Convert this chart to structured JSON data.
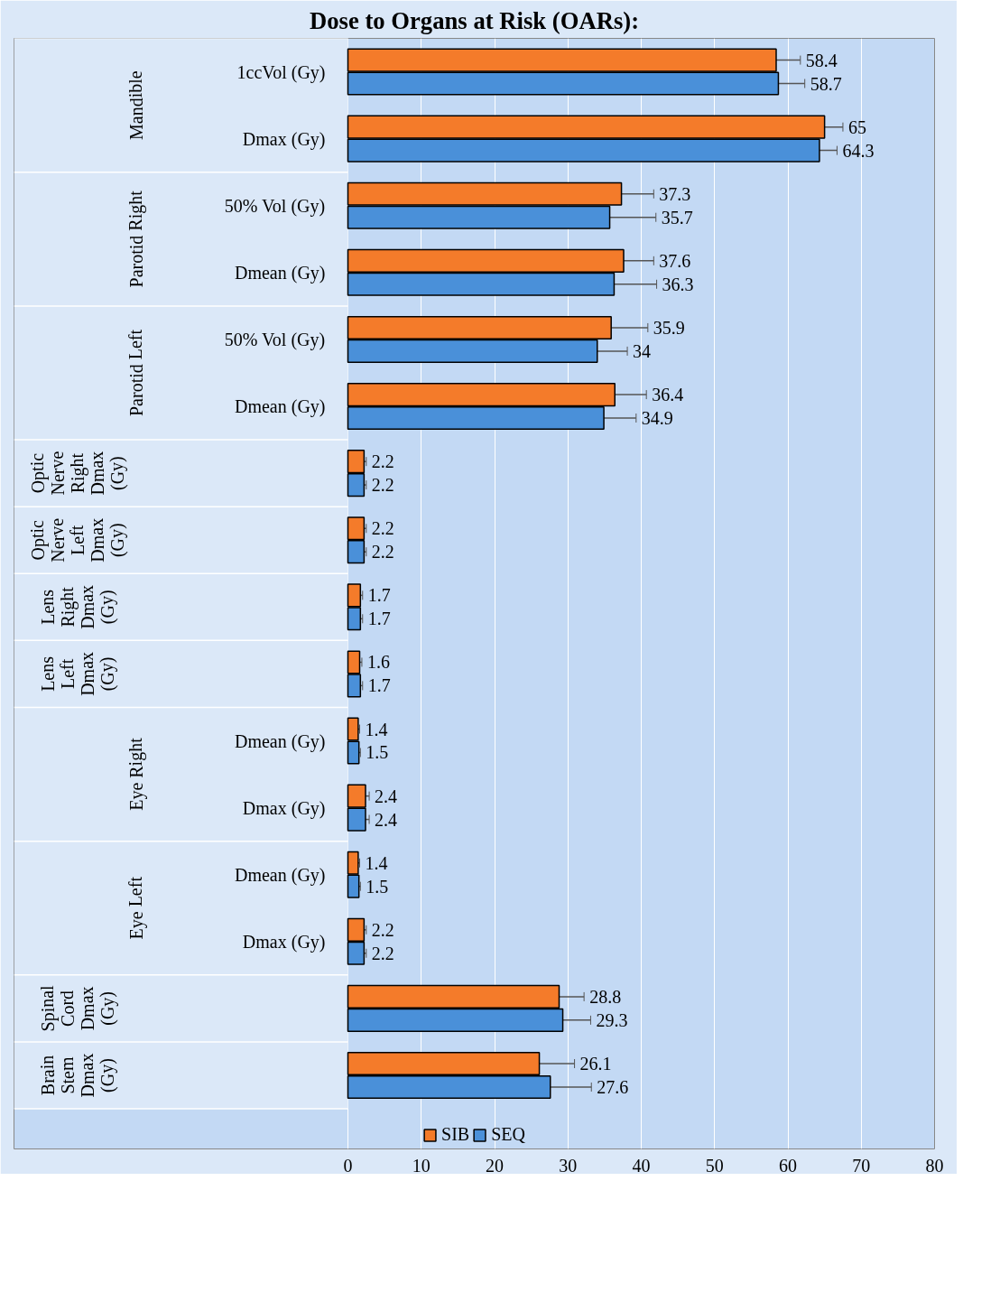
{
  "chart_data": {
    "type": "bar",
    "orientation": "horizontal",
    "title": "Dose to Organs at Risk (OARs):",
    "categories": [
      "1ccVol (Gy)",
      "Dmax (Gy)",
      "50% Vol (Gy)",
      "Dmean (Gy)",
      "50% Vol (Gy)",
      "Dmean (Gy)",
      null,
      null,
      null,
      null,
      "Dmean (Gy)",
      "Dmax (Gy)",
      "Dmean (Gy)",
      "Dmax (Gy)",
      null,
      null
    ],
    "annotations": [
      "Mandible",
      "Parotid Right",
      "Parotid Left",
      "Optic Nerve Right Dmax (Gy)",
      "Optic Nerve Left Dmax (Gy)",
      "Lens Right Dmax (Gy)",
      "Lens Left Dmax (Gy)",
      "Eye Right",
      "Eye Left",
      "Spinal Cord Dmax (Gy)",
      "Brain Stem Dmax (Gy)"
    ],
    "series": [
      {
        "name": "SIB",
        "color": "#f47b2a",
        "values": [
          58.4,
          65,
          37.3,
          37.6,
          35.9,
          36.4,
          2.2,
          2.2,
          1.7,
          1.6,
          1.4,
          2.4,
          1.4,
          2.2,
          28.8,
          26.1
        ],
        "errors": [
          3.3,
          2.5,
          4.4,
          4.1,
          5,
          4.3,
          0.3,
          0.3,
          0.3,
          0.3,
          0.2,
          0.5,
          0.2,
          0.3,
          3.4,
          4.8
        ]
      },
      {
        "name": "SEQ",
        "color": "#4a90d9",
        "values": [
          58.7,
          64.3,
          35.7,
          36.3,
          34,
          34.9,
          2.2,
          2.2,
          1.7,
          1.7,
          1.5,
          2.4,
          1.5,
          2.2,
          29.3,
          27.6
        ],
        "errors": [
          3.6,
          2.4,
          6.3,
          5.8,
          4.1,
          4.4,
          0.3,
          0.3,
          0.3,
          0.3,
          0.2,
          0.5,
          0.2,
          0.3,
          3.8,
          5.6
        ]
      }
    ],
    "xlim": [
      0,
      80
    ],
    "xticks": [
      0,
      10,
      20,
      30,
      40,
      50,
      60,
      70,
      80
    ],
    "grid": "x",
    "legend": "bottom",
    "data_labels": true
  }
}
